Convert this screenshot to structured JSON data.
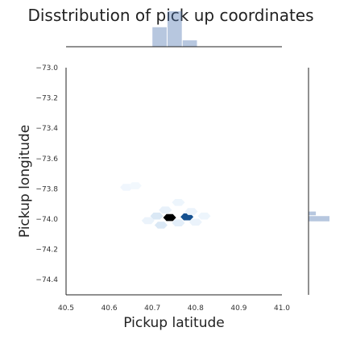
{
  "chart_data": {
    "type": "hexbin",
    "title": "Disstribution of pick up coordinates",
    "xlabel": "Pickup latitude",
    "ylabel": "Pickup longitude",
    "xlim": [
      40.5,
      41.0
    ],
    "ylim": [
      -74.5,
      -73.0
    ],
    "x_ticks": [
      "40.5",
      "40.6",
      "40.7",
      "40.8",
      "40.9",
      "41.0"
    ],
    "y_ticks": [
      "−73.0",
      "−73.2",
      "−73.4",
      "−73.6",
      "−73.8",
      "−74.0",
      "−74.2",
      "−74.4"
    ],
    "grid": false,
    "colormap": "Blues",
    "base_color": "#4c72b0",
    "hexbins": [
      {
        "x": 40.74,
        "y": -73.99,
        "density": 1.0
      },
      {
        "x": 40.78,
        "y": -73.985,
        "density": 0.7
      },
      {
        "x": 40.71,
        "y": -73.98,
        "density": 0.12
      },
      {
        "x": 40.76,
        "y": -74.025,
        "density": 0.08
      },
      {
        "x": 40.8,
        "y": -74.02,
        "density": 0.05
      },
      {
        "x": 40.73,
        "y": -73.94,
        "density": 0.06
      },
      {
        "x": 40.79,
        "y": -73.95,
        "density": 0.05
      },
      {
        "x": 40.72,
        "y": -74.04,
        "density": 0.12
      },
      {
        "x": 40.82,
        "y": -73.98,
        "density": 0.04
      },
      {
        "x": 40.69,
        "y": -74.01,
        "density": 0.05
      },
      {
        "x": 40.76,
        "y": -73.89,
        "density": 0.04
      },
      {
        "x": 40.64,
        "y": -73.79,
        "density": 0.03
      },
      {
        "x": 40.66,
        "y": -73.78,
        "density": 0.02
      }
    ],
    "marginal_x": {
      "bin_edges": [
        40.7,
        40.735,
        40.77,
        40.805
      ],
      "counts": [
        0.55,
        1.0,
        0.18
      ]
    },
    "marginal_y": {
      "bin_edges": [
        -73.95,
        -73.98,
        -74.02
      ],
      "counts": [
        0.35,
        1.0
      ]
    }
  }
}
